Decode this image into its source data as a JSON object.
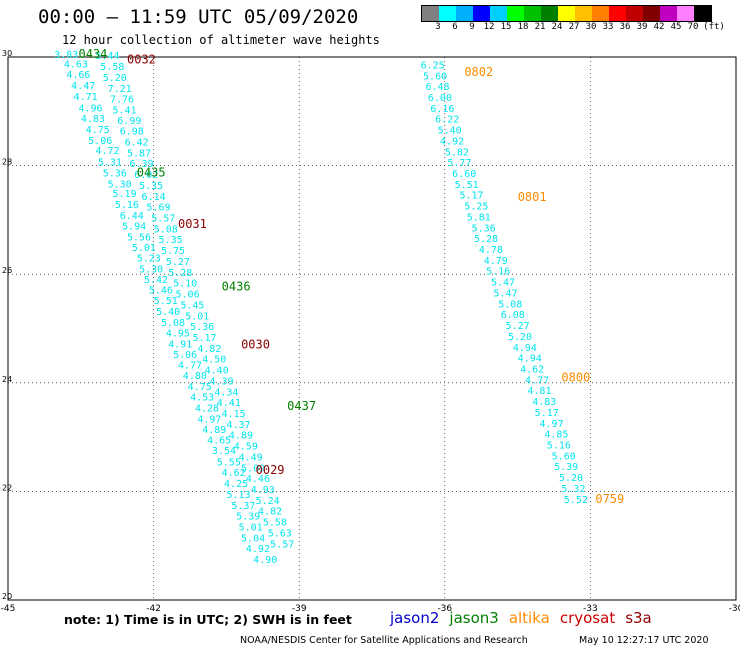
{
  "header": {
    "title": "00:00 – 11:59 UTC 05/09/2020",
    "subtitle": "12 hour collection of altimeter wave heights"
  },
  "colorbar": {
    "colors": [
      "#808080",
      "#00ffff",
      "#00b0ff",
      "#0000ff",
      "#00d0ff",
      "#00ff00",
      "#00c000",
      "#008000",
      "#ffff00",
      "#ffc000",
      "#ff8000",
      "#ff0000",
      "#c00000",
      "#800000",
      "#c000c0",
      "#ff80ff",
      "#000000"
    ],
    "labels": [
      "3",
      "6",
      "9",
      "12",
      "15",
      "18",
      "21",
      "24",
      "27",
      "30",
      "33",
      "36",
      "39",
      "42",
      "45",
      "70",
      "(ft)"
    ]
  },
  "map": {
    "lon_range": [
      -45,
      -30
    ],
    "lat_range": [
      20,
      30
    ],
    "lon_ticks": [
      "-45",
      "-42",
      "-39",
      "-36",
      "-33",
      "-30"
    ],
    "lat_ticks": [
      "30",
      "28",
      "26",
      "24",
      "22",
      "20"
    ],
    "grid": true,
    "grid_style": "dotted"
  },
  "colors": {
    "obs": "#00e5ee",
    "jason2": "#0000cc",
    "jason3": "#008000",
    "altika": "#ff8c00",
    "cryosat": "#cc0000",
    "s3a": "#8b0000"
  },
  "chart_data": {
    "type": "scatter",
    "tracks": [
      {
        "points": [
          {
            "lon": -43.8,
            "lat": 29.98,
            "v": "3.83"
          },
          {
            "lon": -43.6,
            "lat": 29.81,
            "v": "4.63"
          },
          {
            "lon": -43.55,
            "lat": 29.61,
            "v": "4.66"
          },
          {
            "lon": -43.45,
            "lat": 29.41,
            "v": "4.47"
          },
          {
            "lon": -43.4,
            "lat": 29.21,
            "v": "4.71"
          },
          {
            "lon": -43.3,
            "lat": 29.0,
            "v": "4.96"
          },
          {
            "lon": -43.25,
            "lat": 28.8,
            "v": "4.83"
          },
          {
            "lon": -43.15,
            "lat": 28.6,
            "v": "4.75"
          },
          {
            "lon": -43.1,
            "lat": 28.4,
            "v": "5.06"
          },
          {
            "lon": -42.95,
            "lat": 28.21,
            "v": "4.72"
          },
          {
            "lon": -42.9,
            "lat": 28.0,
            "v": "5.31"
          },
          {
            "lon": -42.8,
            "lat": 27.8,
            "v": "5.36"
          },
          {
            "lon": -42.7,
            "lat": 27.6,
            "v": "5.30"
          },
          {
            "lon": -42.6,
            "lat": 27.42,
            "v": "5.19"
          },
          {
            "lon": -42.55,
            "lat": 27.22,
            "v": "5.16"
          },
          {
            "lon": -42.45,
            "lat": 27.02,
            "v": "6.44"
          },
          {
            "lon": -42.4,
            "lat": 26.82,
            "v": "5.94"
          },
          {
            "lon": -42.3,
            "lat": 26.62,
            "v": "5.56"
          },
          {
            "lon": -42.2,
            "lat": 26.43,
            "v": "5.01"
          },
          {
            "lon": -42.1,
            "lat": 26.23,
            "v": "5.23"
          },
          {
            "lon": -42.05,
            "lat": 26.03,
            "v": "5.30"
          },
          {
            "lon": -41.95,
            "lat": 25.84,
            "v": "5.42"
          },
          {
            "lon": -41.85,
            "lat": 25.64,
            "v": "5.46"
          },
          {
            "lon": -41.75,
            "lat": 25.45,
            "v": "5.51"
          },
          {
            "lon": -41.7,
            "lat": 25.25,
            "v": "5.40"
          },
          {
            "lon": -41.6,
            "lat": 25.05,
            "v": "5.08"
          },
          {
            "lon": -41.5,
            "lat": 24.85,
            "v": "4.95"
          },
          {
            "lon": -41.45,
            "lat": 24.65,
            "v": "4.91"
          },
          {
            "lon": -41.35,
            "lat": 24.46,
            "v": "5.06"
          },
          {
            "lon": -41.25,
            "lat": 24.26,
            "v": "4.77"
          },
          {
            "lon": -41.15,
            "lat": 24.07,
            "v": "4.80"
          },
          {
            "lon": -41.05,
            "lat": 23.87,
            "v": "4.75"
          },
          {
            "lon": -41.0,
            "lat": 23.67,
            "v": "4.53"
          },
          {
            "lon": -40.9,
            "lat": 23.47,
            "v": "4.28"
          },
          {
            "lon": -40.85,
            "lat": 23.27,
            "v": "4.97"
          },
          {
            "lon": -40.75,
            "lat": 23.08,
            "v": "4.89"
          },
          {
            "lon": -40.65,
            "lat": 22.88,
            "v": "4.65"
          },
          {
            "lon": -40.55,
            "lat": 22.69,
            "v": "3.54"
          },
          {
            "lon": -40.45,
            "lat": 22.48,
            "v": "5.55"
          },
          {
            "lon": -40.35,
            "lat": 22.28,
            "v": "4.62"
          },
          {
            "lon": -40.3,
            "lat": 22.08,
            "v": "4.25"
          },
          {
            "lon": -40.25,
            "lat": 21.88,
            "v": "5.13"
          },
          {
            "lon": -40.15,
            "lat": 21.68,
            "v": "5.37"
          },
          {
            "lon": -40.05,
            "lat": 21.48,
            "v": "5.39"
          },
          {
            "lon": -40.0,
            "lat": 21.28,
            "v": "5.01"
          },
          {
            "lon": -39.95,
            "lat": 21.08,
            "v": "5.04"
          },
          {
            "lon": -39.85,
            "lat": 20.88,
            "v": "4.92"
          },
          {
            "lon": -39.7,
            "lat": 20.68,
            "v": "4.90"
          }
        ]
      },
      {
        "points": [
          {
            "lon": -42.95,
            "lat": 29.96,
            "v": "5.44"
          },
          {
            "lon": -42.85,
            "lat": 29.76,
            "v": "5.58"
          },
          {
            "lon": -42.8,
            "lat": 29.56,
            "v": "5.20"
          },
          {
            "lon": -42.7,
            "lat": 29.36,
            "v": "7.21"
          },
          {
            "lon": -42.65,
            "lat": 29.16,
            "v": "7.76"
          },
          {
            "lon": -42.6,
            "lat": 28.96,
            "v": "5.41"
          },
          {
            "lon": -42.5,
            "lat": 28.77,
            "v": "6.99"
          },
          {
            "lon": -42.45,
            "lat": 28.57,
            "v": "6.98"
          },
          {
            "lon": -42.35,
            "lat": 28.37,
            "v": "6.42"
          },
          {
            "lon": -42.3,
            "lat": 28.17,
            "v": "5.87"
          },
          {
            "lon": -42.25,
            "lat": 27.97,
            "v": "6.39"
          },
          {
            "lon": -42.15,
            "lat": 27.77,
            "v": "6.02"
          },
          {
            "lon": -42.05,
            "lat": 27.57,
            "v": "5.35"
          },
          {
            "lon": -42.0,
            "lat": 27.37,
            "v": "6.14"
          },
          {
            "lon": -41.9,
            "lat": 27.17,
            "v": "5.69"
          },
          {
            "lon": -41.8,
            "lat": 26.97,
            "v": "5.57"
          },
          {
            "lon": -41.75,
            "lat": 26.77,
            "v": "5.08"
          },
          {
            "lon": -41.65,
            "lat": 26.57,
            "v": "5.35"
          },
          {
            "lon": -41.6,
            "lat": 26.37,
            "v": "5.75"
          },
          {
            "lon": -41.5,
            "lat": 26.17,
            "v": "5.27"
          },
          {
            "lon": -41.45,
            "lat": 25.97,
            "v": "5.28"
          },
          {
            "lon": -41.35,
            "lat": 25.77,
            "v": "5.10"
          },
          {
            "lon": -41.3,
            "lat": 25.57,
            "v": "5.06"
          },
          {
            "lon": -41.2,
            "lat": 25.37,
            "v": "5.45"
          },
          {
            "lon": -41.1,
            "lat": 25.17,
            "v": "5.01"
          },
          {
            "lon": -41.0,
            "lat": 24.97,
            "v": "5.36"
          },
          {
            "lon": -40.95,
            "lat": 24.77,
            "v": "5.17"
          },
          {
            "lon": -40.85,
            "lat": 24.57,
            "v": "4.82"
          },
          {
            "lon": -40.75,
            "lat": 24.37,
            "v": "4.50"
          },
          {
            "lon": -40.7,
            "lat": 24.17,
            "v": "4.40"
          },
          {
            "lon": -40.6,
            "lat": 23.97,
            "v": "4.39"
          },
          {
            "lon": -40.5,
            "lat": 23.77,
            "v": "4.34"
          },
          {
            "lon": -40.45,
            "lat": 23.57,
            "v": "4.41"
          },
          {
            "lon": -40.35,
            "lat": 23.37,
            "v": "4.15"
          },
          {
            "lon": -40.25,
            "lat": 23.17,
            "v": "4.37"
          },
          {
            "lon": -40.2,
            "lat": 22.97,
            "v": "4.89"
          },
          {
            "lon": -40.1,
            "lat": 22.77,
            "v": "4.59"
          },
          {
            "lon": -40.0,
            "lat": 22.57,
            "v": "4.49"
          },
          {
            "lon": -39.95,
            "lat": 22.37,
            "v": "5.09"
          },
          {
            "lon": -39.85,
            "lat": 22.17,
            "v": "4.46"
          },
          {
            "lon": -39.75,
            "lat": 21.97,
            "v": "4.93"
          },
          {
            "lon": -39.65,
            "lat": 21.77,
            "v": "5.24"
          },
          {
            "lon": -39.6,
            "lat": 21.57,
            "v": "4.82"
          },
          {
            "lon": -39.5,
            "lat": 21.37,
            "v": "5.58"
          },
          {
            "lon": -39.4,
            "lat": 21.17,
            "v": "5.63"
          },
          {
            "lon": -39.35,
            "lat": 20.97,
            "v": "5.57"
          }
        ]
      },
      {
        "points": [
          {
            "lon": -36.25,
            "lat": 29.79,
            "v": "6.25"
          },
          {
            "lon": -36.2,
            "lat": 29.59,
            "v": "5.60"
          },
          {
            "lon": -36.15,
            "lat": 29.39,
            "v": "6.48"
          },
          {
            "lon": -36.1,
            "lat": 29.19,
            "v": "6.00"
          },
          {
            "lon": -36.05,
            "lat": 28.99,
            "v": "6.16"
          },
          {
            "lon": -35.95,
            "lat": 28.79,
            "v": "6.22"
          },
          {
            "lon": -35.9,
            "lat": 28.59,
            "v": "5.40"
          },
          {
            "lon": -35.85,
            "lat": 28.39,
            "v": "4.92"
          },
          {
            "lon": -35.75,
            "lat": 28.19,
            "v": "5.82"
          },
          {
            "lon": -35.7,
            "lat": 27.99,
            "v": "5.77"
          },
          {
            "lon": -35.6,
            "lat": 27.79,
            "v": "6.60"
          },
          {
            "lon": -35.55,
            "lat": 27.59,
            "v": "5.51"
          },
          {
            "lon": -35.45,
            "lat": 27.39,
            "v": "5.17"
          },
          {
            "lon": -35.35,
            "lat": 27.19,
            "v": "5.25"
          },
          {
            "lon": -35.3,
            "lat": 26.99,
            "v": "5.81"
          },
          {
            "lon": -35.2,
            "lat": 26.79,
            "v": "5.36"
          },
          {
            "lon": -35.15,
            "lat": 26.59,
            "v": "5.28"
          },
          {
            "lon": -35.05,
            "lat": 26.39,
            "v": "4.78"
          },
          {
            "lon": -34.95,
            "lat": 26.19,
            "v": "4.79"
          },
          {
            "lon": -34.9,
            "lat": 25.99,
            "v": "5.16"
          },
          {
            "lon": -34.8,
            "lat": 25.79,
            "v": "5.47"
          },
          {
            "lon": -34.75,
            "lat": 25.59,
            "v": "5.47"
          },
          {
            "lon": -34.65,
            "lat": 25.39,
            "v": "5.08"
          },
          {
            "lon": -34.6,
            "lat": 25.19,
            "v": "6.08"
          },
          {
            "lon": -34.5,
            "lat": 24.99,
            "v": "5.27"
          },
          {
            "lon": -34.45,
            "lat": 24.79,
            "v": "5.20"
          },
          {
            "lon": -34.35,
            "lat": 24.59,
            "v": "4.94"
          },
          {
            "lon": -34.25,
            "lat": 24.39,
            "v": "4.94"
          },
          {
            "lon": -34.2,
            "lat": 24.19,
            "v": "4.62"
          },
          {
            "lon": -34.1,
            "lat": 23.99,
            "v": "4.77"
          },
          {
            "lon": -34.05,
            "lat": 23.79,
            "v": "4.81"
          },
          {
            "lon": -33.95,
            "lat": 23.59,
            "v": "4.83"
          },
          {
            "lon": -33.9,
            "lat": 23.39,
            "v": "5.17"
          },
          {
            "lon": -33.8,
            "lat": 23.19,
            "v": "4.97"
          },
          {
            "lon": -33.7,
            "lat": 22.99,
            "v": "4.85"
          },
          {
            "lon": -33.65,
            "lat": 22.79,
            "v": "5.16"
          },
          {
            "lon": -33.55,
            "lat": 22.59,
            "v": "5.60"
          },
          {
            "lon": -33.5,
            "lat": 22.39,
            "v": "5.39"
          },
          {
            "lon": -33.4,
            "lat": 22.19,
            "v": "5.20"
          },
          {
            "lon": -33.35,
            "lat": 21.99,
            "v": "5.32"
          },
          {
            "lon": -33.3,
            "lat": 21.79,
            "v": "5.52"
          }
        ]
      }
    ],
    "times": [
      {
        "lon": -43.25,
        "lat": 29.98,
        "v": "0434",
        "sat": "jason3"
      },
      {
        "lon": -42.25,
        "lat": 29.88,
        "v": "0032",
        "sat": "s3a"
      },
      {
        "lon": -42.05,
        "lat": 27.8,
        "v": "0435",
        "sat": "jason3"
      },
      {
        "lon": -41.2,
        "lat": 26.85,
        "v": "0031",
        "sat": "s3a"
      },
      {
        "lon": -40.3,
        "lat": 25.7,
        "v": "0436",
        "sat": "jason3"
      },
      {
        "lon": -39.9,
        "lat": 24.63,
        "v": "0030",
        "sat": "s3a"
      },
      {
        "lon": -38.95,
        "lat": 23.5,
        "v": "0437",
        "sat": "jason3"
      },
      {
        "lon": -39.6,
        "lat": 22.32,
        "v": "0029",
        "sat": "s3a"
      },
      {
        "lon": -35.3,
        "lat": 29.65,
        "v": "0802",
        "sat": "altika"
      },
      {
        "lon": -34.2,
        "lat": 27.35,
        "v": "0801",
        "sat": "altika"
      },
      {
        "lon": -33.3,
        "lat": 24.02,
        "v": "0800",
        "sat": "altika"
      },
      {
        "lon": -32.6,
        "lat": 21.79,
        "v": "0759",
        "sat": "altika"
      }
    ]
  },
  "footer": {
    "note": "note: 1) Time is in UTC; 2) SWH is in feet",
    "legend": [
      {
        "label": "jason2",
        "key": "jason2"
      },
      {
        "label": "jason3",
        "key": "jason3"
      },
      {
        "label": "altika",
        "key": "altika"
      },
      {
        "label": "cryosat",
        "key": "cryosat"
      },
      {
        "label": "s3a",
        "key": "s3a"
      }
    ],
    "credit": "NOAA/NESDIS Center for Satellite Applications and Research",
    "timestamp": "May 10 12:27:17 UTC 2020"
  }
}
